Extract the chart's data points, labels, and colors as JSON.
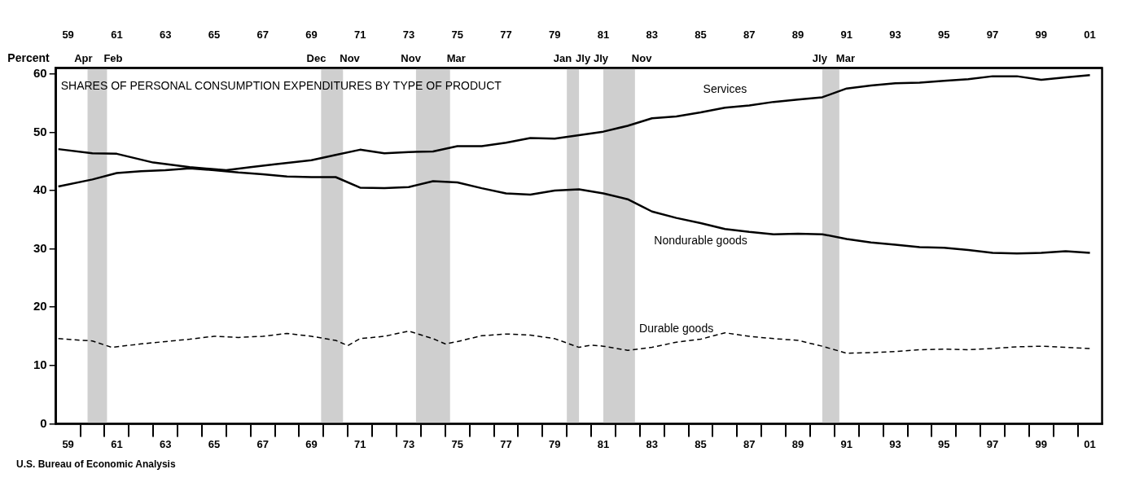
{
  "chart_data": {
    "type": "line",
    "title": "SHARES OF PERSONAL CONSUMPTION EXPENDITURES BY TYPE OF PRODUCT",
    "ylabel": "Percent",
    "annotations": [
      "U.S. Bureau of Economic Analysis",
      "Apr",
      "Feb",
      "Dec",
      "Nov",
      "Nov",
      "Mar",
      "Jan",
      "Jly",
      "Jly",
      "Nov",
      "Jly",
      "Mar"
    ],
    "series": [
      {
        "name": "Services",
        "color": "#000000",
        "x": [
          1958.6,
          1960,
          1961,
          1962.5,
          1964,
          1965.5,
          1966.5,
          1967.5,
          1969,
          1970,
          1971,
          1972,
          1973,
          1974,
          1975,
          1976,
          1977,
          1978,
          1979,
          1980,
          1981,
          1982,
          1983,
          1984,
          1985,
          1986,
          1987,
          1988,
          1989,
          1990,
          1991,
          1992,
          1993,
          1994,
          1995,
          1996,
          1997,
          1998,
          1999,
          2000,
          2001
        ],
        "values": [
          47.1,
          46.4,
          46.3,
          44.8,
          44.0,
          43.5,
          44.0,
          44.5,
          45.2,
          46.1,
          47.0,
          46.4,
          46.6,
          46.7,
          47.6,
          47.6,
          48.2,
          49.0,
          48.9,
          49.5,
          50.1,
          51.1,
          52.4,
          52.7,
          53.4,
          54.2,
          54.6,
          55.2,
          55.6,
          56.0,
          57.5,
          58.0,
          58.4,
          58.5,
          58.8,
          59.1,
          59.6,
          59.6,
          59.0,
          59.4,
          59.8
        ]
      },
      {
        "name": "Nondurable goods",
        "color": "#000000",
        "x": [
          1958.6,
          1960,
          1961,
          1962,
          1963,
          1964,
          1965,
          1966,
          1967,
          1968,
          1969,
          1970,
          1971,
          1972,
          1973,
          1974,
          1975,
          1976,
          1977,
          1978,
          1979,
          1980,
          1981,
          1982,
          1983,
          1984,
          1985,
          1986,
          1987,
          1988,
          1989,
          1990,
          1991,
          1992,
          1993,
          1994,
          1995,
          1996,
          1997,
          1998,
          1999,
          2000,
          2001
        ],
        "values": [
          40.7,
          41.9,
          43.0,
          43.3,
          43.5,
          43.8,
          43.5,
          43.1,
          42.8,
          42.4,
          42.3,
          42.3,
          40.5,
          40.4,
          40.6,
          41.6,
          41.4,
          40.4,
          39.5,
          39.3,
          40.0,
          40.2,
          39.5,
          38.5,
          36.4,
          35.3,
          34.4,
          33.4,
          32.9,
          32.5,
          32.6,
          32.5,
          31.7,
          31.1,
          30.7,
          30.3,
          30.2,
          29.8,
          29.3,
          29.2,
          29.3,
          29.6,
          29.3
        ]
      },
      {
        "name": "Durable goods",
        "color": "#000000",
        "line_style": "dashed",
        "x": [
          1958.6,
          1960,
          1960.8,
          1962,
          1963,
          1964,
          1965,
          1966,
          1967,
          1968,
          1969,
          1970,
          1970.5,
          1971,
          1972,
          1973,
          1974,
          1974.5,
          1975,
          1976,
          1977,
          1978,
          1979,
          1980,
          1980.5,
          1981,
          1982,
          1983,
          1984,
          1985,
          1986,
          1987,
          1988,
          1989,
          1990,
          1991,
          1992,
          1993,
          1994,
          1995,
          1996,
          1997,
          1998,
          1999,
          2000,
          2001
        ],
        "values": [
          14.6,
          14.2,
          13.1,
          13.7,
          14.1,
          14.5,
          15.0,
          14.8,
          15.0,
          15.5,
          15.0,
          14.3,
          13.4,
          14.6,
          15.0,
          15.9,
          14.6,
          13.7,
          14.1,
          15.1,
          15.4,
          15.2,
          14.6,
          13.1,
          13.5,
          13.3,
          12.6,
          13.1,
          14.0,
          14.5,
          15.6,
          15.0,
          14.6,
          14.3,
          13.3,
          12.1,
          12.2,
          12.4,
          12.7,
          12.8,
          12.7,
          12.9,
          13.2,
          13.3,
          13.1,
          12.9
        ]
      }
    ],
    "bands": [
      {
        "axis": "x",
        "from": 1959.8,
        "to": 1960.6,
        "color": "#cfcfcf"
      },
      {
        "axis": "x",
        "from": 1969.4,
        "to": 1970.3,
        "color": "#cfcfcf"
      },
      {
        "axis": "x",
        "from": 1973.3,
        "to": 1974.7,
        "color": "#cfcfcf"
      },
      {
        "axis": "x",
        "from": 1979.5,
        "to": 1980.0,
        "color": "#cfcfcf"
      },
      {
        "axis": "x",
        "from": 1981.0,
        "to": 1982.3,
        "color": "#cfcfcf"
      },
      {
        "axis": "x",
        "from": 1990.0,
        "to": 1990.7,
        "color": "#cfcfcf"
      }
    ],
    "xlim": [
      1958.5,
      2001.5
    ],
    "xticks": [
      {
        "value": 1959,
        "label": "59"
      },
      {
        "value": 1961,
        "label": "61"
      },
      {
        "value": 1963,
        "label": "63"
      },
      {
        "value": 1965,
        "label": "65"
      },
      {
        "value": 1967,
        "label": "67"
      },
      {
        "value": 1969,
        "label": "69"
      },
      {
        "value": 1971,
        "label": "71"
      },
      {
        "value": 1973,
        "label": "73"
      },
      {
        "value": 1975,
        "label": "75"
      },
      {
        "value": 1977,
        "label": "77"
      },
      {
        "value": 1979,
        "label": "79"
      },
      {
        "value": 1981,
        "label": "81"
      },
      {
        "value": 1983,
        "label": "83"
      },
      {
        "value": 1985,
        "label": "85"
      },
      {
        "value": 1987,
        "label": "87"
      },
      {
        "value": 1989,
        "label": "89"
      },
      {
        "value": 1991,
        "label": "91"
      },
      {
        "value": 1993,
        "label": "93"
      },
      {
        "value": 1995,
        "label": "95"
      },
      {
        "value": 1997,
        "label": "97"
      },
      {
        "value": 1999,
        "label": "99"
      },
      {
        "value": 2001,
        "label": "01"
      },
      {
        "value": 1959.5,
        "label": null
      },
      {
        "value": 1960.5,
        "label": null
      },
      {
        "value": 1961.5,
        "label": null
      },
      {
        "value": 1962.5,
        "label": null
      },
      {
        "value": 1963.5,
        "label": null
      },
      {
        "value": 1964.5,
        "label": null
      },
      {
        "value": 1965.5,
        "label": null
      },
      {
        "value": 1966.5,
        "label": null
      },
      {
        "value": 1967.5,
        "label": null
      },
      {
        "value": 1968.5,
        "label": null
      },
      {
        "value": 1969.5,
        "label": null
      },
      {
        "value": 1970.5,
        "label": null
      },
      {
        "value": 1971.5,
        "label": null
      },
      {
        "value": 1972.5,
        "label": null
      },
      {
        "value": 1973.5,
        "label": null
      },
      {
        "value": 1974.5,
        "label": null
      },
      {
        "value": 1975.5,
        "label": null
      },
      {
        "value": 1976.5,
        "label": null
      },
      {
        "value": 1977.5,
        "label": null
      },
      {
        "value": 1978.5,
        "label": null
      },
      {
        "value": 1979.5,
        "label": null
      },
      {
        "value": 1980.5,
        "label": null
      },
      {
        "value": 1981.5,
        "label": null
      },
      {
        "value": 1982.5,
        "label": null
      },
      {
        "value": 1983.5,
        "label": null
      },
      {
        "value": 1984.5,
        "label": null
      },
      {
        "value": 1985.5,
        "label": null
      },
      {
        "value": 1986.5,
        "label": null
      },
      {
        "value": 1987.5,
        "label": null
      },
      {
        "value": 1988.5,
        "label": null
      },
      {
        "value": 1989.5,
        "label": null
      },
      {
        "value": 1990.5,
        "label": null
      },
      {
        "value": 1991.5,
        "label": null
      },
      {
        "value": 1992.5,
        "label": null
      },
      {
        "value": 1993.5,
        "label": null
      },
      {
        "value": 1994.5,
        "label": null
      },
      {
        "value": 1995.5,
        "label": null
      },
      {
        "value": 1996.5,
        "label": null
      },
      {
        "value": 1997.5,
        "label": null
      },
      {
        "value": 1998.5,
        "label": null
      },
      {
        "value": 1999.5,
        "label": null
      },
      {
        "value": 2000.5,
        "label": null
      }
    ],
    "x2lim": [
      1958.5,
      2001.5
    ],
    "x2ticks": [
      {
        "value": 1959,
        "label": "59"
      },
      {
        "value": 1961,
        "label": "61"
      },
      {
        "value": 1963,
        "label": "63"
      },
      {
        "value": 1965,
        "label": "65"
      },
      {
        "value": 1967,
        "label": "67"
      },
      {
        "value": 1969,
        "label": "69"
      },
      {
        "value": 1971,
        "label": "71"
      },
      {
        "value": 1973,
        "label": "73"
      },
      {
        "value": 1975,
        "label": "75"
      },
      {
        "value": 1977,
        "label": "77"
      },
      {
        "value": 1979,
        "label": "79"
      },
      {
        "value": 1981,
        "label": "81"
      },
      {
        "value": 1983,
        "label": "83"
      },
      {
        "value": 1985,
        "label": "85"
      },
      {
        "value": 1987,
        "label": "87"
      },
      {
        "value": 1989,
        "label": "89"
      },
      {
        "value": 1991,
        "label": "91"
      },
      {
        "value": 1993,
        "label": "93"
      },
      {
        "value": 1995,
        "label": "95"
      },
      {
        "value": 1997,
        "label": "97"
      },
      {
        "value": 1999,
        "label": "99"
      },
      {
        "value": 2001,
        "label": "01"
      }
    ],
    "ylim": [
      0,
      61
    ],
    "yticks": [
      0,
      10,
      20,
      30,
      40,
      50,
      60
    ],
    "grid": false,
    "legend": false
  }
}
